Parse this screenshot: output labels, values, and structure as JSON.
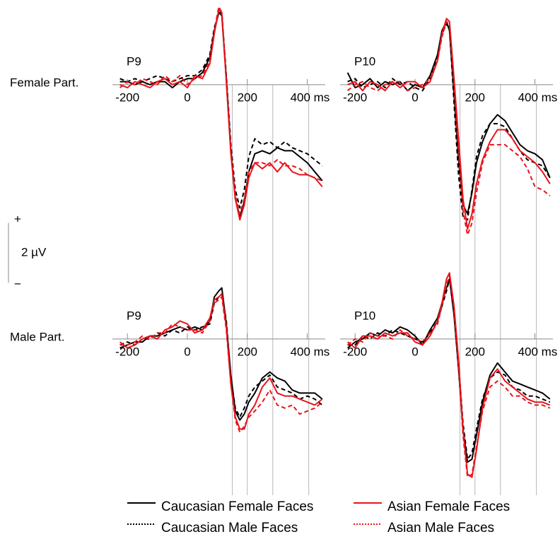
{
  "rows": [
    "Female Part.",
    "Male Part."
  ],
  "scale_bar": {
    "value": 2,
    "label": "2 µV",
    "plus": "+",
    "minus": "−"
  },
  "chart_data": [
    {
      "type": "line",
      "title": "P9",
      "x": [
        -225,
        -200,
        -175,
        -150,
        -125,
        -100,
        -75,
        -50,
        -25,
        0,
        25,
        50,
        75,
        90,
        105,
        115,
        130,
        145,
        160,
        175,
        190,
        205,
        225,
        250,
        275,
        300,
        325,
        350,
        375,
        400,
        425,
        450
      ],
      "xlim": [
        -250,
        460
      ],
      "xticks": [
        -200,
        0,
        200,
        {
          "value": 400,
          "label": "400 ms"
        }
      ],
      "ylim": [
        -5.2,
        2.7
      ],
      "markers": [
        150,
        200,
        285,
        405
      ],
      "series": [
        {
          "name": "Caucasian Female Faces",
          "color": "#000000",
          "dashed": false,
          "values": [
            0.1,
            0.1,
            0,
            0.1,
            0,
            0.1,
            0.1,
            -0.1,
            0.1,
            0.2,
            0.2,
            0.4,
            0.9,
            1.8,
            2.4,
            2.3,
            0.2,
            -2.2,
            -3.8,
            -4.4,
            -3.9,
            -2.9,
            -2.3,
            -2.2,
            -2.3,
            -2.1,
            -2.2,
            -2.2,
            -2.4,
            -2.6,
            -2.9,
            -3.2
          ]
        },
        {
          "name": "Caucasian Male Faces",
          "color": "#000000",
          "dashed": true,
          "values": [
            0.2,
            0.1,
            0.2,
            0.1,
            0.2,
            0.3,
            0.2,
            0.1,
            0.2,
            0.3,
            0.3,
            0.5,
            1.0,
            1.9,
            2.4,
            2.4,
            0.3,
            -2.0,
            -3.5,
            -4.1,
            -3.5,
            -2.4,
            -1.8,
            -2.0,
            -1.9,
            -2.1,
            -1.9,
            -2.1,
            -2.2,
            -2.3,
            -2.5,
            -2.7
          ]
        },
        {
          "name": "Asian Female Faces",
          "color": "#e8141b",
          "dashed": false,
          "values": [
            0.0,
            -0.1,
            0.1,
            0.0,
            -0.1,
            0.1,
            0.2,
            0.0,
            0.1,
            -0.1,
            0.3,
            0.2,
            0.7,
            1.7,
            2.5,
            2.4,
            0.1,
            -2.3,
            -3.8,
            -4.5,
            -4.0,
            -3.1,
            -2.6,
            -2.8,
            -2.6,
            -2.9,
            -2.6,
            -2.9,
            -3.0,
            -3.0,
            -3.1,
            -3.4
          ]
        },
        {
          "name": "Asian Male Faces",
          "color": "#e8141b",
          "dashed": true,
          "values": [
            -0.1,
            0.1,
            0.0,
            0.2,
            0.1,
            0.0,
            0.3,
            0.1,
            0.3,
            0.0,
            0.2,
            0.3,
            0.8,
            1.8,
            2.6,
            2.4,
            0.1,
            -2.2,
            -3.7,
            -4.3,
            -3.8,
            -2.9,
            -2.6,
            -2.6,
            -2.7,
            -2.5,
            -2.7,
            -2.7,
            -2.8,
            -3.0,
            -3.1,
            -3.2
          ]
        }
      ]
    },
    {
      "type": "line",
      "title": "P10",
      "x": [
        -225,
        -200,
        -175,
        -150,
        -125,
        -100,
        -75,
        -50,
        -25,
        0,
        25,
        50,
        75,
        90,
        105,
        115,
        130,
        145,
        160,
        175,
        190,
        205,
        225,
        250,
        275,
        300,
        325,
        350,
        375,
        400,
        425,
        450
      ],
      "xlim": [
        -250,
        460
      ],
      "xticks": [
        -200,
        0,
        200,
        {
          "value": 400,
          "label": "400 ms"
        }
      ],
      "ylim": [
        -5.2,
        2.7
      ],
      "markers": [
        150,
        200,
        285,
        405
      ],
      "series": [
        {
          "name": "Caucasian Female Faces",
          "color": "#000000",
          "dashed": false,
          "values": [
            0.4,
            -0.1,
            0.0,
            0.2,
            -0.1,
            0.1,
            0.0,
            0.1,
            -0.2,
            0.0,
            -0.1,
            0.3,
            1.0,
            1.8,
            2.1,
            1.8,
            -0.3,
            -2.5,
            -4.0,
            -4.3,
            -3.6,
            -2.6,
            -1.9,
            -1.3,
            -1.0,
            -1.2,
            -1.6,
            -2.0,
            -2.2,
            -2.3,
            -2.5,
            -3.1
          ]
        },
        {
          "name": "Caucasian Male Faces",
          "color": "#000000",
          "dashed": true,
          "values": [
            0.1,
            0.2,
            -0.1,
            0.0,
            0.1,
            -0.1,
            0.2,
            0.0,
            0.1,
            -0.1,
            -0.2,
            0.2,
            0.9,
            1.7,
            2.0,
            1.9,
            -0.6,
            -3.0,
            -4.4,
            -4.5,
            -3.5,
            -2.4,
            -1.7,
            -1.3,
            -1.3,
            -1.4,
            -1.8,
            -2.2,
            -2.5,
            -2.6,
            -2.7,
            -3.1
          ]
        },
        {
          "name": "Asian Female Faces",
          "color": "#e8141b",
          "dashed": false,
          "values": [
            0.0,
            0.1,
            -0.2,
            0.1,
            0.0,
            -0.2,
            0.1,
            -0.1,
            0.1,
            0.1,
            -0.1,
            0.1,
            0.8,
            1.7,
            2.2,
            2.1,
            0.2,
            -1.8,
            -3.8,
            -4.8,
            -4.3,
            -3.3,
            -2.5,
            -1.9,
            -1.5,
            -1.5,
            -1.8,
            -2.2,
            -2.4,
            -2.6,
            -2.9,
            -3.3
          ]
        },
        {
          "name": "Asian Male Faces",
          "color": "#e8141b",
          "dashed": true,
          "values": [
            -0.2,
            0.0,
            0.1,
            -0.1,
            -0.2,
            0.0,
            0.1,
            0.1,
            -0.2,
            -0.1,
            0.0,
            0.2,
            0.8,
            1.6,
            2.1,
            2.0,
            0.0,
            -2.2,
            -4.2,
            -5.0,
            -4.6,
            -3.6,
            -2.6,
            -2.0,
            -2.0,
            -2.0,
            -2.2,
            -2.4,
            -2.8,
            -3.4,
            -3.5,
            -3.7
          ]
        }
      ]
    },
    {
      "type": "line",
      "title": "P9",
      "x": [
        -225,
        -200,
        -175,
        -150,
        -125,
        -100,
        -75,
        -50,
        -25,
        0,
        25,
        50,
        75,
        90,
        105,
        115,
        130,
        145,
        160,
        175,
        190,
        205,
        225,
        250,
        275,
        300,
        325,
        350,
        375,
        400,
        425,
        450
      ],
      "xlim": [
        -250,
        460
      ],
      "xticks": [
        -200,
        0,
        200,
        {
          "value": 400,
          "label": "400 ms"
        }
      ],
      "ylim": [
        -5.2,
        2.7
      ],
      "markers": [
        150,
        200,
        285,
        405
      ],
      "series": [
        {
          "name": "Caucasian Female Faces",
          "color": "#000000",
          "dashed": false,
          "values": [
            -0.3,
            -0.2,
            -0.1,
            -0.1,
            0.1,
            0.1,
            0.2,
            0.3,
            0.4,
            0.3,
            0.4,
            0.3,
            0.6,
            1.4,
            1.6,
            1.7,
            0.5,
            -1.2,
            -2.4,
            -2.7,
            -2.5,
            -2.1,
            -1.8,
            -1.3,
            -1.1,
            -1.3,
            -1.4,
            -1.7,
            -1.8,
            -1.8,
            -1.8,
            -2.0
          ]
        },
        {
          "name": "Caucasian Male Faces",
          "color": "#000000",
          "dashed": true,
          "values": [
            -0.2,
            -0.1,
            -0.2,
            0.0,
            0.0,
            0.2,
            0.1,
            0.3,
            0.2,
            0.4,
            0.3,
            0.4,
            0.5,
            1.2,
            1.4,
            1.5,
            0.6,
            -1.3,
            -2.3,
            -2.6,
            -2.3,
            -1.9,
            -1.6,
            -1.4,
            -1.2,
            -1.6,
            -1.7,
            -1.8,
            -2.0,
            -1.9,
            -2.0,
            -2.2
          ]
        },
        {
          "name": "Asian Female Faces",
          "color": "#e8141b",
          "dashed": false,
          "values": [
            -0.1,
            -0.3,
            -0.2,
            0.0,
            0.1,
            0.0,
            0.3,
            0.4,
            0.6,
            0.5,
            0.2,
            0.3,
            0.7,
            1.3,
            1.4,
            1.5,
            0.4,
            -1.5,
            -2.6,
            -3.0,
            -3.0,
            -2.5,
            -2.2,
            -1.6,
            -1.3,
            -1.8,
            -1.9,
            -1.9,
            -2.0,
            -2.1,
            -2.2,
            -2.0
          ]
        },
        {
          "name": "Asian Male Faces",
          "color": "#e8141b",
          "dashed": true,
          "values": [
            -0.2,
            -0.2,
            -0.1,
            0.1,
            0.0,
            0.2,
            0.2,
            0.5,
            0.4,
            0.3,
            0.3,
            0.2,
            0.6,
            1.2,
            1.3,
            1.4,
            0.3,
            -1.5,
            -2.7,
            -3.1,
            -2.9,
            -2.6,
            -2.4,
            -2.1,
            -1.7,
            -2.2,
            -2.3,
            -2.2,
            -2.5,
            -2.4,
            -2.3,
            -2.1
          ]
        }
      ]
    },
    {
      "type": "line",
      "title": "P10",
      "x": [
        -225,
        -200,
        -175,
        -150,
        -125,
        -100,
        -75,
        -50,
        -25,
        0,
        25,
        50,
        75,
        90,
        105,
        115,
        130,
        145,
        160,
        175,
        190,
        205,
        225,
        250,
        275,
        300,
        325,
        350,
        375,
        400,
        425,
        450
      ],
      "xlim": [
        -250,
        460
      ],
      "xticks": [
        -200,
        0,
        200,
        {
          "value": 400,
          "label": "400 ms"
        }
      ],
      "ylim": [
        -5.2,
        2.7
      ],
      "markers": [
        150,
        200,
        285,
        405
      ],
      "series": [
        {
          "name": "Caucasian Female Faces",
          "color": "#000000",
          "dashed": false,
          "values": [
            -0.3,
            -0.1,
            0.0,
            0.2,
            0.1,
            0.3,
            0.2,
            0.4,
            0.3,
            0.1,
            -0.2,
            0.3,
            0.7,
            1.2,
            1.7,
            2.0,
            0.8,
            -1.0,
            -3.0,
            -4.1,
            -4.0,
            -3.2,
            -2.1,
            -1.2,
            -0.8,
            -1.1,
            -1.4,
            -1.5,
            -1.6,
            -1.7,
            -1.8,
            -2.0
          ]
        },
        {
          "name": "Caucasian Male Faces",
          "color": "#000000",
          "dashed": true,
          "values": [
            -0.2,
            -0.2,
            0.1,
            0.0,
            0.2,
            0.1,
            0.3,
            0.2,
            0.1,
            0.0,
            -0.1,
            0.2,
            0.6,
            1.1,
            1.6,
            2.0,
            1.0,
            -0.8,
            -2.8,
            -4.0,
            -3.8,
            -3.0,
            -2.0,
            -1.3,
            -1.1,
            -1.2,
            -1.6,
            -1.7,
            -1.9,
            -1.9,
            -2.0,
            -2.1
          ]
        },
        {
          "name": "Asian Female Faces",
          "color": "#e8141b",
          "dashed": false,
          "values": [
            -0.1,
            -0.3,
            0.1,
            0.1,
            0.0,
            0.2,
            0.1,
            0.2,
            0.2,
            -0.1,
            -0.2,
            0.1,
            0.6,
            1.2,
            2.0,
            2.2,
            1.1,
            -0.7,
            -3.0,
            -4.5,
            -4.6,
            -3.7,
            -2.3,
            -1.3,
            -1.0,
            -1.4,
            -1.6,
            -1.8,
            -2.0,
            -2.1,
            -2.1,
            -2.2
          ]
        },
        {
          "name": "Asian Male Faces",
          "color": "#e8141b",
          "dashed": true,
          "values": [
            -0.2,
            0.0,
            -0.1,
            0.2,
            0.1,
            0.1,
            0.0,
            0.3,
            0.1,
            0.0,
            -0.1,
            0.2,
            0.5,
            1.1,
            1.8,
            2.1,
            1.0,
            -0.9,
            -3.2,
            -4.6,
            -4.5,
            -3.6,
            -2.4,
            -1.6,
            -1.4,
            -1.6,
            -1.9,
            -1.9,
            -2.1,
            -2.2,
            -2.2,
            -2.3
          ]
        }
      ]
    }
  ]
}
